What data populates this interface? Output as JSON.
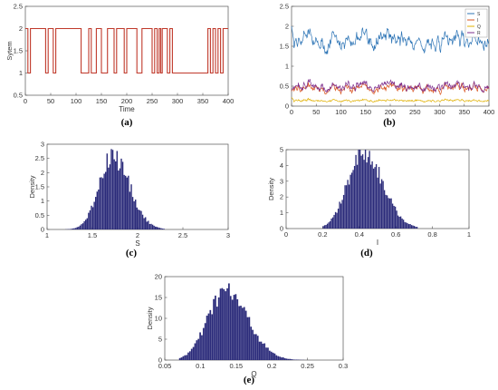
{
  "chart_data": [
    {
      "id": "a",
      "caption": "(a)",
      "type": "line",
      "xlabel": "Time",
      "ylabel": "Sytem",
      "xlim": [
        0,
        400
      ],
      "ylim": [
        0.5,
        2.5
      ],
      "xticks": [
        0,
        50,
        100,
        150,
        200,
        250,
        300,
        350,
        400
      ],
      "yticks": [
        0.5,
        1,
        1.5,
        2,
        2.5
      ],
      "ytick_labels": [
        "0.5",
        "1",
        "1.5",
        "2",
        "2.5"
      ],
      "series": [
        {
          "color": "#c0392b",
          "step": true,
          "x": [
            0,
            5,
            10,
            40,
            45,
            55,
            60,
            110,
            125,
            130,
            140,
            150,
            162,
            175,
            180,
            195,
            200,
            220,
            230,
            250,
            255,
            260,
            264,
            267,
            270,
            280,
            285,
            290,
            360,
            365,
            370,
            375,
            380,
            385,
            390,
            400
          ],
          "y": [
            2,
            1,
            2,
            1,
            2,
            1,
            2,
            1,
            2,
            1,
            2,
            1,
            2,
            1,
            2,
            1,
            2,
            1,
            2,
            1,
            2,
            1,
            2,
            1,
            2,
            1,
            2,
            1,
            2,
            1,
            2,
            1,
            2,
            1,
            2,
            2
          ]
        }
      ]
    },
    {
      "id": "b",
      "caption": "(b)",
      "type": "line",
      "xlim": [
        0,
        400
      ],
      "ylim": [
        0,
        2.5
      ],
      "xticks": [
        0,
        50,
        100,
        150,
        200,
        250,
        300,
        350,
        400
      ],
      "yticks": [
        0,
        0.5,
        1,
        1.5,
        2,
        2.5
      ],
      "ytick_labels": [
        "0",
        "0.5",
        "1",
        "1.5",
        "2",
        "2.5"
      ],
      "legend": "top-right",
      "series": [
        {
          "name": "S",
          "color": "#2e75b6",
          "mean": 1.65,
          "amp": 0.2
        },
        {
          "name": "I",
          "color": "#d9531e",
          "mean": 0.45,
          "amp": 0.1
        },
        {
          "name": "Q",
          "color": "#e0b000",
          "mean": 0.14,
          "amp": 0.03
        },
        {
          "name": "R",
          "color": "#7e2f8e",
          "mean": 0.5,
          "amp": 0.11
        }
      ]
    },
    {
      "id": "c",
      "caption": "(c)",
      "type": "bar",
      "xlabel": "S",
      "ylabel": "Density",
      "xlim": [
        1,
        3
      ],
      "ylim": [
        0,
        3
      ],
      "xticks": [
        1,
        1.5,
        2,
        2.5,
        3
      ],
      "xtick_labels": [
        "1",
        "1.5",
        "2",
        "2.5",
        "3"
      ],
      "yticks": [
        0,
        0.5,
        1,
        1.5,
        2,
        2.5,
        3
      ],
      "ytick_labels": [
        "0",
        "0.5",
        "1",
        "1.5",
        "2",
        "2.5",
        "3"
      ],
      "color": "#2b2b7a",
      "distribution": {
        "mean": 1.72,
        "sd": 0.15,
        "peak": 2.6,
        "bins": 70,
        "start": 1.2,
        "end": 2.3
      }
    },
    {
      "id": "d",
      "caption": "(d)",
      "type": "bar",
      "xlabel": "I",
      "ylabel": "Density",
      "xlim": [
        0,
        1
      ],
      "ylim": [
        0,
        5
      ],
      "xticks": [
        0,
        0.2,
        0.4,
        0.6,
        0.8,
        1
      ],
      "xtick_labels": [
        "0",
        "0.2",
        "0.4",
        "0.6",
        "0.8",
        "1"
      ],
      "yticks": [
        0,
        1,
        2,
        3,
        4,
        5
      ],
      "ytick_labels": [
        "0",
        "1",
        "2",
        "3",
        "4",
        "5"
      ],
      "color": "#2b2b7a",
      "distribution": {
        "mean": 0.42,
        "sd": 0.085,
        "peak": 4.9,
        "bins": 70,
        "start": 0.2,
        "end": 0.72
      }
    },
    {
      "id": "e",
      "caption": "(e)",
      "type": "bar",
      "xlabel": "Q",
      "ylabel": "Density",
      "xlim": [
        0.05,
        0.3
      ],
      "ylim": [
        0,
        20
      ],
      "xticks": [
        0.05,
        0.1,
        0.15,
        0.2,
        0.25,
        0.3
      ],
      "xtick_labels": [
        "0.05",
        "0.1",
        "0.15",
        "0.2",
        "0.25",
        "0.3"
      ],
      "yticks": [
        0,
        5,
        10,
        15,
        20
      ],
      "ytick_labels": [
        "0",
        "5",
        "10",
        "15",
        "20"
      ],
      "color": "#2b2b7a",
      "distribution": {
        "mean": 0.135,
        "sd": 0.025,
        "peak": 16.5,
        "bins": 80,
        "start": 0.07,
        "end": 0.26
      }
    }
  ]
}
